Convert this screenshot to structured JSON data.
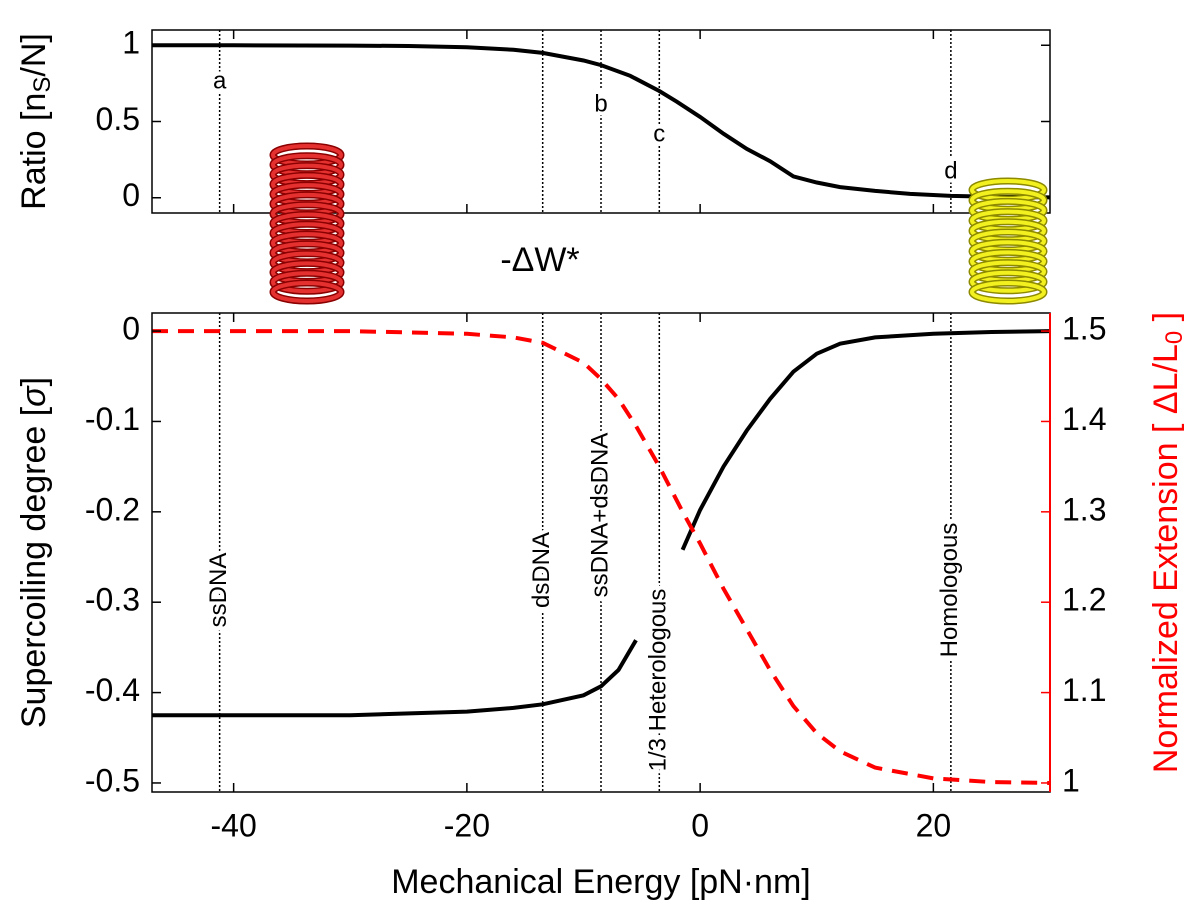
{
  "chart_data": [
    {
      "type": "line",
      "y_label": [
        "Ratio [n",
        "S",
        "/N]"
      ],
      "x_annotation": "-ΔW*",
      "x": [
        -47,
        -40,
        -30,
        -25,
        -20,
        -16,
        -13.5,
        -10,
        -8.5,
        -6,
        -3.5,
        -2,
        0,
        2,
        4,
        6,
        8,
        10,
        12,
        15,
        18,
        21.5,
        25,
        30
      ],
      "series": [
        {
          "color": "#000000",
          "style": "solid",
          "values": [
            1.0,
            1.0,
            0.998,
            0.995,
            0.987,
            0.97,
            0.95,
            0.9,
            0.87,
            0.8,
            0.7,
            0.63,
            0.53,
            0.42,
            0.32,
            0.24,
            0.14,
            0.1,
            0.07,
            0.045,
            0.025,
            0.012,
            0.006,
            0.002
          ]
        }
      ],
      "xlim": [
        -47,
        30
      ],
      "ylim": [
        -0.1,
        1.1
      ],
      "xticks": [
        -40,
        -20,
        0,
        20
      ],
      "yticks": [
        0,
        0.5,
        1
      ],
      "annotations": [
        {
          "x": -41.2,
          "label": "a"
        },
        {
          "x": -13.5
        },
        {
          "x": -8.5,
          "label": "b"
        },
        {
          "x": -3.5,
          "label": "c"
        },
        {
          "x": 21.5,
          "label": "d"
        }
      ]
    },
    {
      "type": "line",
      "x_label": "Mechanical Energy [pN·nm]",
      "y_label": [
        "Supercoiling degree [",
        "σ",
        "]"
      ],
      "y2_label": [
        "Normalized Extension [ ΔL/L",
        "0",
        " ]"
      ],
      "x": [
        -47,
        -40,
        -30,
        -20,
        -16,
        -13.5,
        -10,
        -8.5,
        -7,
        -5.5,
        -3.5,
        -1.5,
        0,
        2,
        4,
        6,
        8,
        10,
        12,
        15,
        20,
        25,
        30
      ],
      "series": [
        {
          "color": "#000000",
          "style": "solid",
          "values": [
            -0.425,
            -0.425,
            -0.425,
            -0.421,
            -0.417,
            -0.413,
            -0.403,
            -0.393,
            -0.375,
            -0.342,
            null,
            -0.242,
            -0.198,
            -0.15,
            -0.11,
            -0.075,
            -0.045,
            -0.025,
            -0.014,
            -0.007,
            -0.003,
            -0.001,
            0
          ]
        },
        {
          "color": "#ff0000",
          "style": "dashed",
          "axis": "y2",
          "values": [
            1.5,
            1.5,
            1.5,
            1.497,
            1.493,
            1.487,
            1.465,
            1.447,
            1.425,
            1.395,
            1.35,
            1.3,
            1.265,
            1.215,
            1.17,
            1.125,
            1.085,
            1.055,
            1.035,
            1.017,
            1.005,
            1.001,
            1.0
          ]
        }
      ],
      "xlim": [
        -47,
        30
      ],
      "ylim": [
        -0.51,
        0.02
      ],
      "y2lim": [
        0.99,
        1.52
      ],
      "xticks": [
        -40,
        -20,
        0,
        20
      ],
      "yticks": [
        -0.5,
        -0.4,
        -0.3,
        -0.2,
        -0.1,
        0
      ],
      "y2ticks": [
        1,
        1.1,
        1.2,
        1.3,
        1.4,
        1.5
      ],
      "y2_color": "#ff0000",
      "annotations": [
        {
          "x": -41.2,
          "label": "ssDNA"
        },
        {
          "x": -13.5,
          "label": "dsDNA"
        },
        {
          "x": -8.5,
          "label": "ssDNA+dsDNA"
        },
        {
          "x": -3.5,
          "label": "1/3 Heterologous"
        },
        {
          "x": 21.5,
          "label": "Homologous"
        }
      ]
    }
  ]
}
